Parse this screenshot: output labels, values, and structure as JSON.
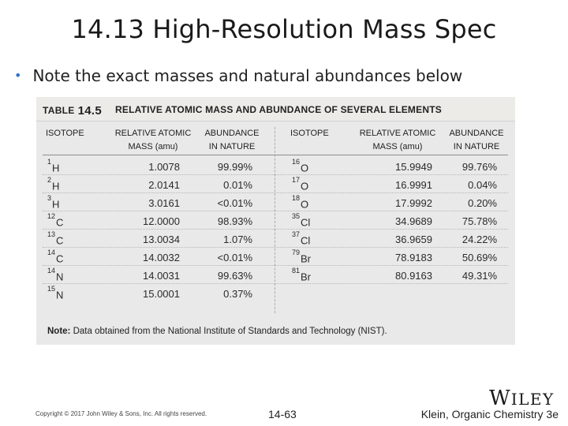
{
  "slide": {
    "title": "14.13 High-Resolution Mass Spec",
    "bullet": "Note the exact masses and natural abundances below"
  },
  "table": {
    "label": "TABLE",
    "number": "14.5",
    "caption": "RELATIVE ATOMIC MASS AND ABUNDANCE OF SEVERAL ELEMENTS",
    "headers": {
      "isotope": "ISOTOPE",
      "mass_1": "RELATIVE ATOMIC",
      "mass_2": "MASS (amu)",
      "abund_1": "ABUNDANCE",
      "abund_2": "IN NATURE"
    },
    "left_rows": [
      {
        "mass_no": "1",
        "symbol": "H",
        "mass": "1.0078",
        "abundance": "99.99%"
      },
      {
        "mass_no": "2",
        "symbol": "H",
        "mass": "2.0141",
        "abundance": "0.01%"
      },
      {
        "mass_no": "3",
        "symbol": "H",
        "mass": "3.0161",
        "abundance": "<0.01%"
      },
      {
        "mass_no": "12",
        "symbol": "C",
        "mass": "12.0000",
        "abundance": "98.93%"
      },
      {
        "mass_no": "13",
        "symbol": "C",
        "mass": "13.0034",
        "abundance": "1.07%"
      },
      {
        "mass_no": "14",
        "symbol": "C",
        "mass": "14.0032",
        "abundance": "<0.01%"
      },
      {
        "mass_no": "14",
        "symbol": "N",
        "mass": "14.0031",
        "abundance": "99.63%"
      },
      {
        "mass_no": "15",
        "symbol": "N",
        "mass": "15.0001",
        "abundance": "0.37%"
      }
    ],
    "right_rows": [
      {
        "mass_no": "16",
        "symbol": "O",
        "mass": "15.9949",
        "abundance": "99.76%"
      },
      {
        "mass_no": "17",
        "symbol": "O",
        "mass": "16.9991",
        "abundance": "0.04%"
      },
      {
        "mass_no": "18",
        "symbol": "O",
        "mass": "17.9992",
        "abundance": "0.20%"
      },
      {
        "mass_no": "35",
        "symbol": "Cl",
        "mass": "34.9689",
        "abundance": "75.78%"
      },
      {
        "mass_no": "37",
        "symbol": "Cl",
        "mass": "36.9659",
        "abundance": "24.22%"
      },
      {
        "mass_no": "79",
        "symbol": "Br",
        "mass": "78.9183",
        "abundance": "50.69%"
      },
      {
        "mass_no": "81",
        "symbol": "Br",
        "mass": "80.9163",
        "abundance": "49.31%"
      }
    ],
    "note_label": "Note:",
    "note_text": "Data obtained from the National Institute of Standards and Technology (NIST)."
  },
  "footer": {
    "copyright": "Copyright © 2017 John Wiley & Sons, Inc. All rights reserved.",
    "page": "14-63",
    "book": "Klein, Organic Chemistry 3e",
    "logo_w": "W",
    "logo_rest": "ILEY"
  },
  "colors": {
    "bullet": "#2f72c8",
    "table_bg": "#e9e9e9"
  }
}
